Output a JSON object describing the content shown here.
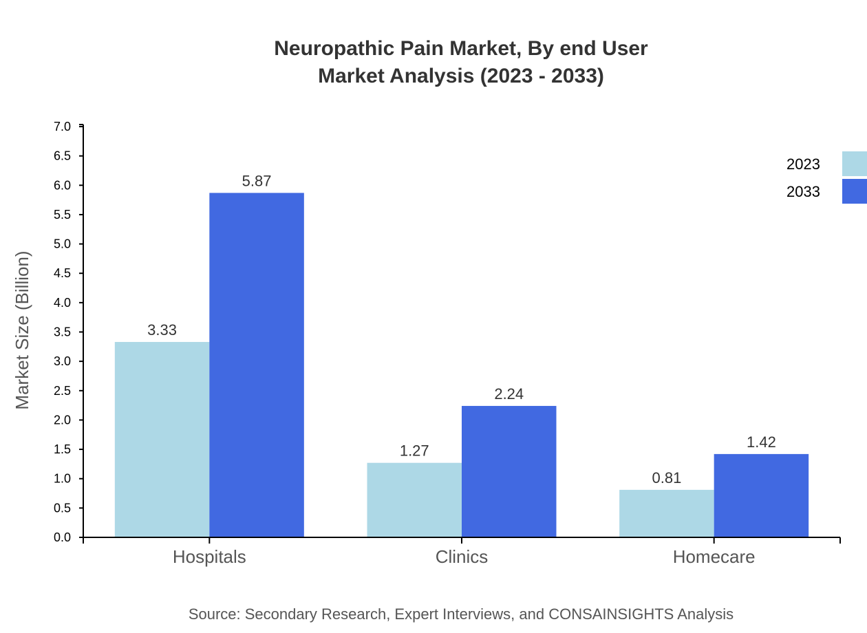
{
  "chart_data": {
    "type": "bar",
    "title_lines": [
      "Neuropathic Pain Market, By end User",
      "Market Analysis (2023 - 2033)"
    ],
    "ylabel": "Market Size (Billion)",
    "xlabel": "",
    "ylim": [
      0,
      7
    ],
    "yticks": [
      "0.0",
      "0.5",
      "1.0",
      "1.5",
      "2.0",
      "2.5",
      "3.0",
      "3.5",
      "4.0",
      "4.5",
      "5.0",
      "5.5",
      "6.0",
      "6.5",
      "7.0"
    ],
    "categories": [
      "Hospitals",
      "Clinics",
      "Homecare"
    ],
    "series": [
      {
        "name": "2023",
        "color": "#ADD8E6",
        "values": [
          3.33,
          1.27,
          0.81
        ],
        "labels": [
          "3.33",
          "1.27",
          "0.81"
        ]
      },
      {
        "name": "2033",
        "color": "#4169E1",
        "values": [
          5.87,
          2.24,
          1.42
        ],
        "labels": [
          "5.87",
          "2.24",
          "1.42"
        ]
      }
    ],
    "legend_position": "top-right",
    "grid": false,
    "source": "Source: Secondary Research, Expert Interviews, and CONSAINSIGHTS Analysis"
  }
}
